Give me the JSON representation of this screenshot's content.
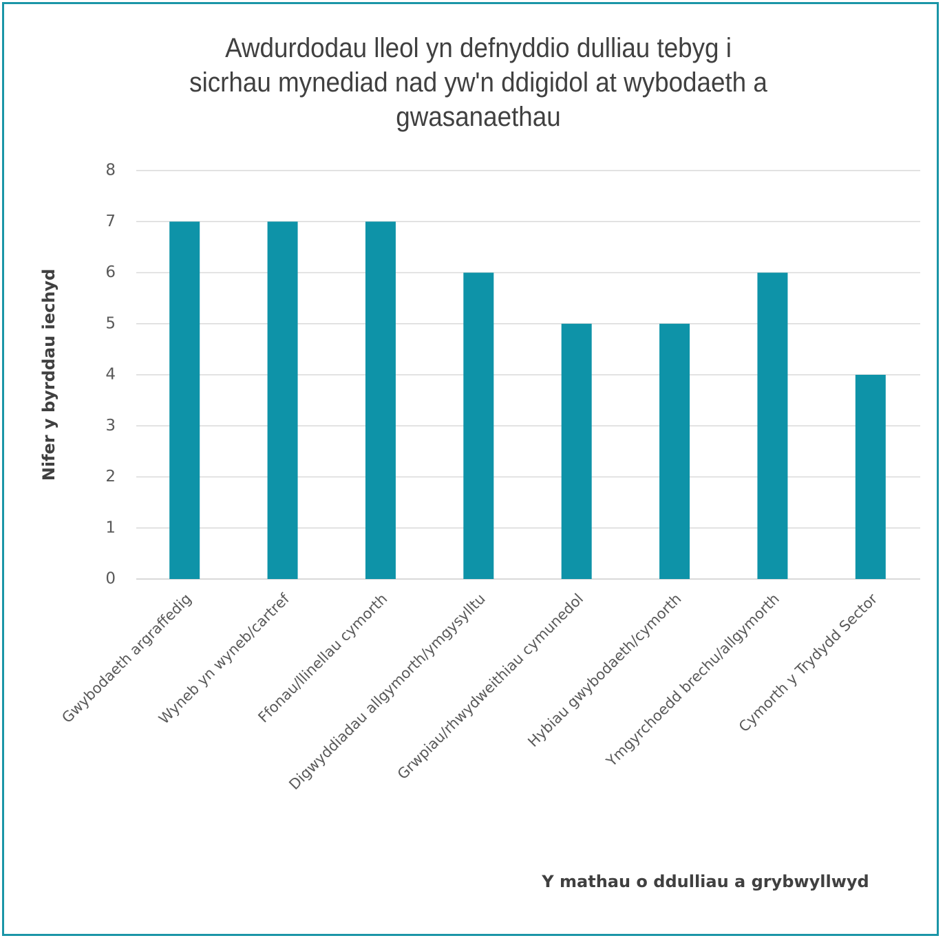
{
  "chart_data": {
    "type": "bar",
    "title": "Awdurdodau lleol yn defnyddio dulliau tebyg i sicrhau mynediad nad yw'n ddigidol at wybodaeth a gwasanaethau",
    "title_lines": [
      "Awdurdodau lleol yn defnyddio dulliau tebyg i",
      "sicrhau mynediad nad yw'n ddigidol at wybodaeth a",
      "gwasanaethau"
    ],
    "xlabel": "Y mathau o ddulliau a grybwyllwyd",
    "ylabel": "Nifer y byrddau iechyd",
    "categories": [
      "Gwybodaeth argraffedig",
      "Wyneb yn wyneb/cartref",
      "Ffonau/llinellau cymorth",
      "Digwyddiadau allgymorth/ymgysylltu",
      "Grwpiau/rhwydweithiau cymunedol",
      "Hybiau gwybodaeth/cymorth",
      "Ymgyrchoedd brechu/allgymorth",
      "Cymorth y Trydydd Sector"
    ],
    "values": [
      7,
      7,
      7,
      6,
      5,
      5,
      6,
      4
    ],
    "ylim": [
      0,
      8
    ],
    "yticks": [
      "0",
      "1",
      "2",
      "3",
      "4",
      "5",
      "6",
      "7",
      "8"
    ],
    "grid": true,
    "legend": "none",
    "colors": {
      "bar": "#0e93a8",
      "grid": "#d9d9d9",
      "frame": "#1a95a7"
    }
  }
}
